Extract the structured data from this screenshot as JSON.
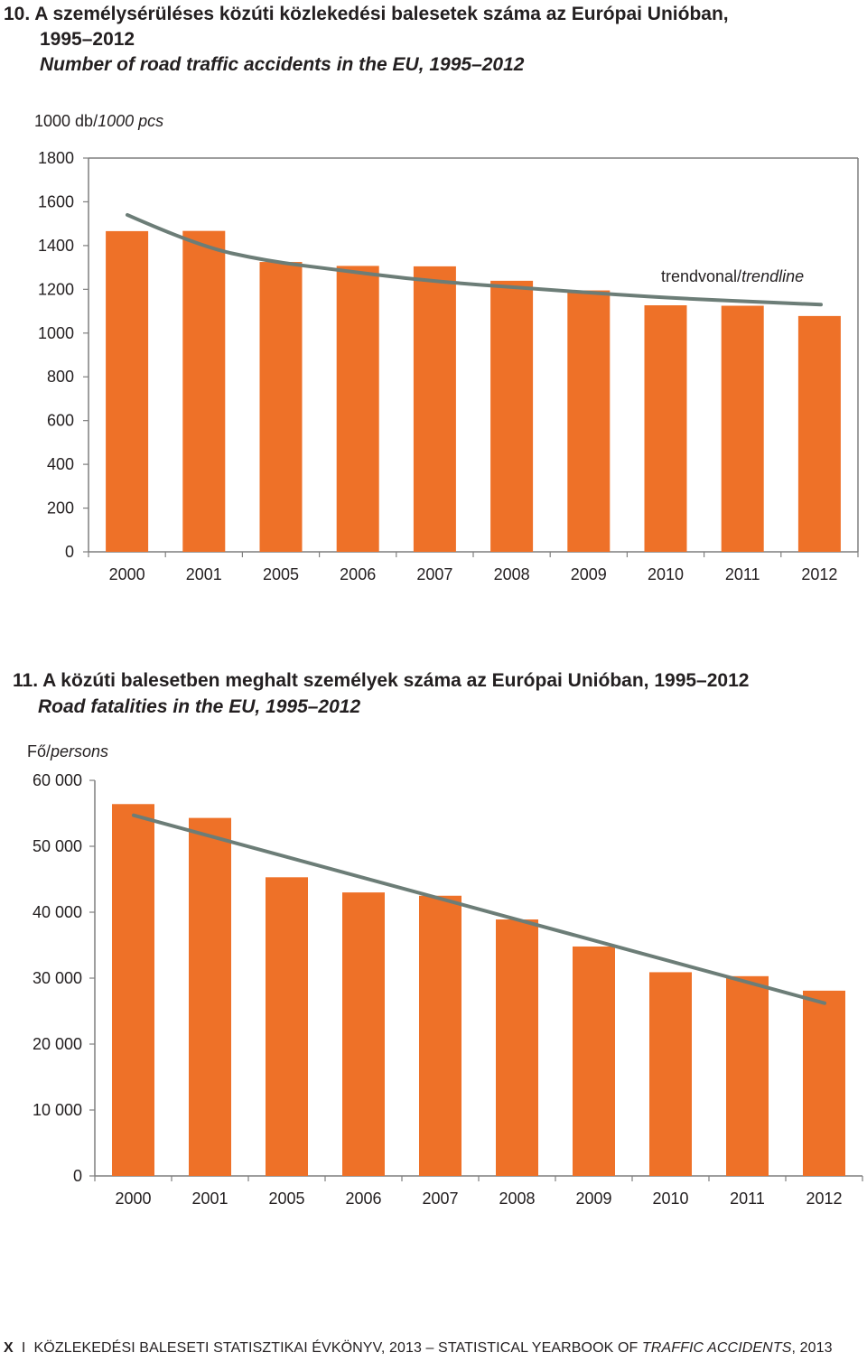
{
  "chart1": {
    "title_hu": "10. A személysérüléses közúti közlekedési balesetek száma az Európai Unióban,",
    "title_hu_2": "1995–2012",
    "title_en": "Number of road traffic accidents in the EU, 1995–2012",
    "unit_hu": "1000 db/",
    "unit_en": "1000 pcs",
    "trend_hu": "trendvonal/",
    "trend_en": "trendline"
  },
  "chart2": {
    "title_hu": "11.  A közúti balesetben meghalt személyek száma az Európai Unióban, 1995–2012",
    "title_en": "Road fatalities in the EU, 1995–2012",
    "unit_hu": "Fő/",
    "unit_en": "persons"
  },
  "footer": {
    "page": "X",
    "sep": "I",
    "hu": "KÖZLEKEDÉSI BALESETI STATISZTIKAI ÉVKÖNYV, 2013 – STATISTICAL YEARBOOK OF ",
    "en": "TRAFFIC ACCIDENTS",
    "year": ", 2013"
  },
  "colors": {
    "bar": "#ee7128",
    "trend": "#6c7d77",
    "axis": "#7f7f7f"
  },
  "chart_data": [
    {
      "type": "bar",
      "categories": [
        "2000",
        "2001",
        "2005",
        "2006",
        "2007",
        "2008",
        "2009",
        "2010",
        "2011",
        "2012"
      ],
      "values": [
        1466,
        1467,
        1325,
        1307,
        1305,
        1239,
        1195,
        1127,
        1125,
        1078
      ],
      "trendline": [
        1540,
        1400,
        1330,
        1290,
        1250,
        1222,
        1200,
        1177,
        1158,
        1144,
        1130
      ],
      "ylim": [
        0,
        1800
      ],
      "yticks": [
        0,
        200,
        400,
        600,
        800,
        1000,
        1200,
        1400,
        1600,
        1800
      ],
      "ytick_labels": [
        "0",
        "200",
        "400",
        "600",
        "800",
        "1000",
        "1200",
        "1400",
        "1600",
        "1800"
      ],
      "grid": false
    },
    {
      "type": "bar",
      "categories": [
        "2000",
        "2001",
        "2005",
        "2006",
        "2007",
        "2008",
        "2009",
        "2010",
        "2011",
        "2012"
      ],
      "values": [
        56400,
        54300,
        45300,
        43000,
        42500,
        38900,
        34800,
        30900,
        30300,
        28100
      ],
      "trendline": [
        54700,
        26200
      ],
      "ylim": [
        0,
        60000
      ],
      "yticks": [
        0,
        10000,
        20000,
        30000,
        40000,
        50000,
        60000
      ],
      "ytick_labels": [
        "0",
        "10 000",
        "20 000",
        "30 000",
        "40 000",
        "50 000",
        "60 000"
      ],
      "grid": false
    }
  ]
}
